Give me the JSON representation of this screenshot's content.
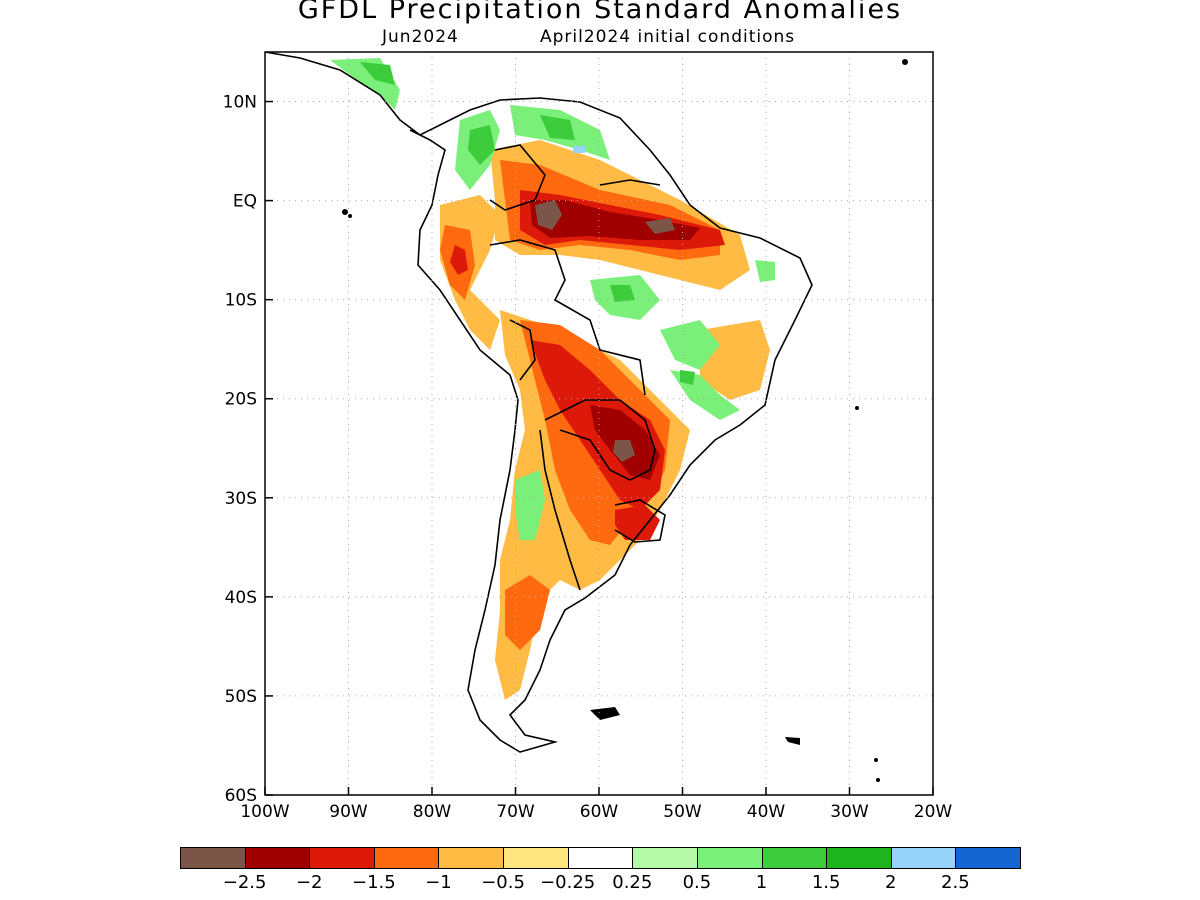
{
  "header": {
    "title": "GFDL Precipitation Standard Anomalies",
    "target_month": "Jun2024",
    "initial_conditions": "April2024 initial conditions"
  },
  "map": {
    "lon_range": [
      -100,
      -20
    ],
    "lat_range": [
      -60,
      15
    ],
    "lat_ticks": [
      {
        "value": 10,
        "label": "10N"
      },
      {
        "value": 0,
        "label": "EQ"
      },
      {
        "value": -10,
        "label": "10S"
      },
      {
        "value": -20,
        "label": "20S"
      },
      {
        "value": -30,
        "label": "30S"
      },
      {
        "value": -40,
        "label": "40S"
      },
      {
        "value": -50,
        "label": "50S"
      },
      {
        "value": -60,
        "label": "60S"
      }
    ],
    "lon_ticks": [
      {
        "value": -100,
        "label": "100W"
      },
      {
        "value": -90,
        "label": "90W"
      },
      {
        "value": -80,
        "label": "80W"
      },
      {
        "value": -70,
        "label": "70W"
      },
      {
        "value": -60,
        "label": "60W"
      },
      {
        "value": -50,
        "label": "50W"
      },
      {
        "value": -40,
        "label": "40W"
      },
      {
        "value": -30,
        "label": "30W"
      },
      {
        "value": -20,
        "label": "20W"
      }
    ],
    "grid": "dotted",
    "coastline_color": "#000000"
  },
  "colorbar": {
    "colors": [
      "#7a5548",
      "#a00000",
      "#dd1a0a",
      "#ff6a10",
      "#ffbb44",
      "#ffe680",
      "#ffffff",
      "#b4f8a8",
      "#7af07a",
      "#3ccc3c",
      "#1eb41e",
      "#96d2fa",
      "#1464d2"
    ],
    "labels": [
      "−2.5",
      "−2",
      "−1.5",
      "−1",
      "−0.5",
      "−0.25",
      "0.25",
      "0.5",
      "1",
      "1.5",
      "2",
      "2.5"
    ]
  }
}
